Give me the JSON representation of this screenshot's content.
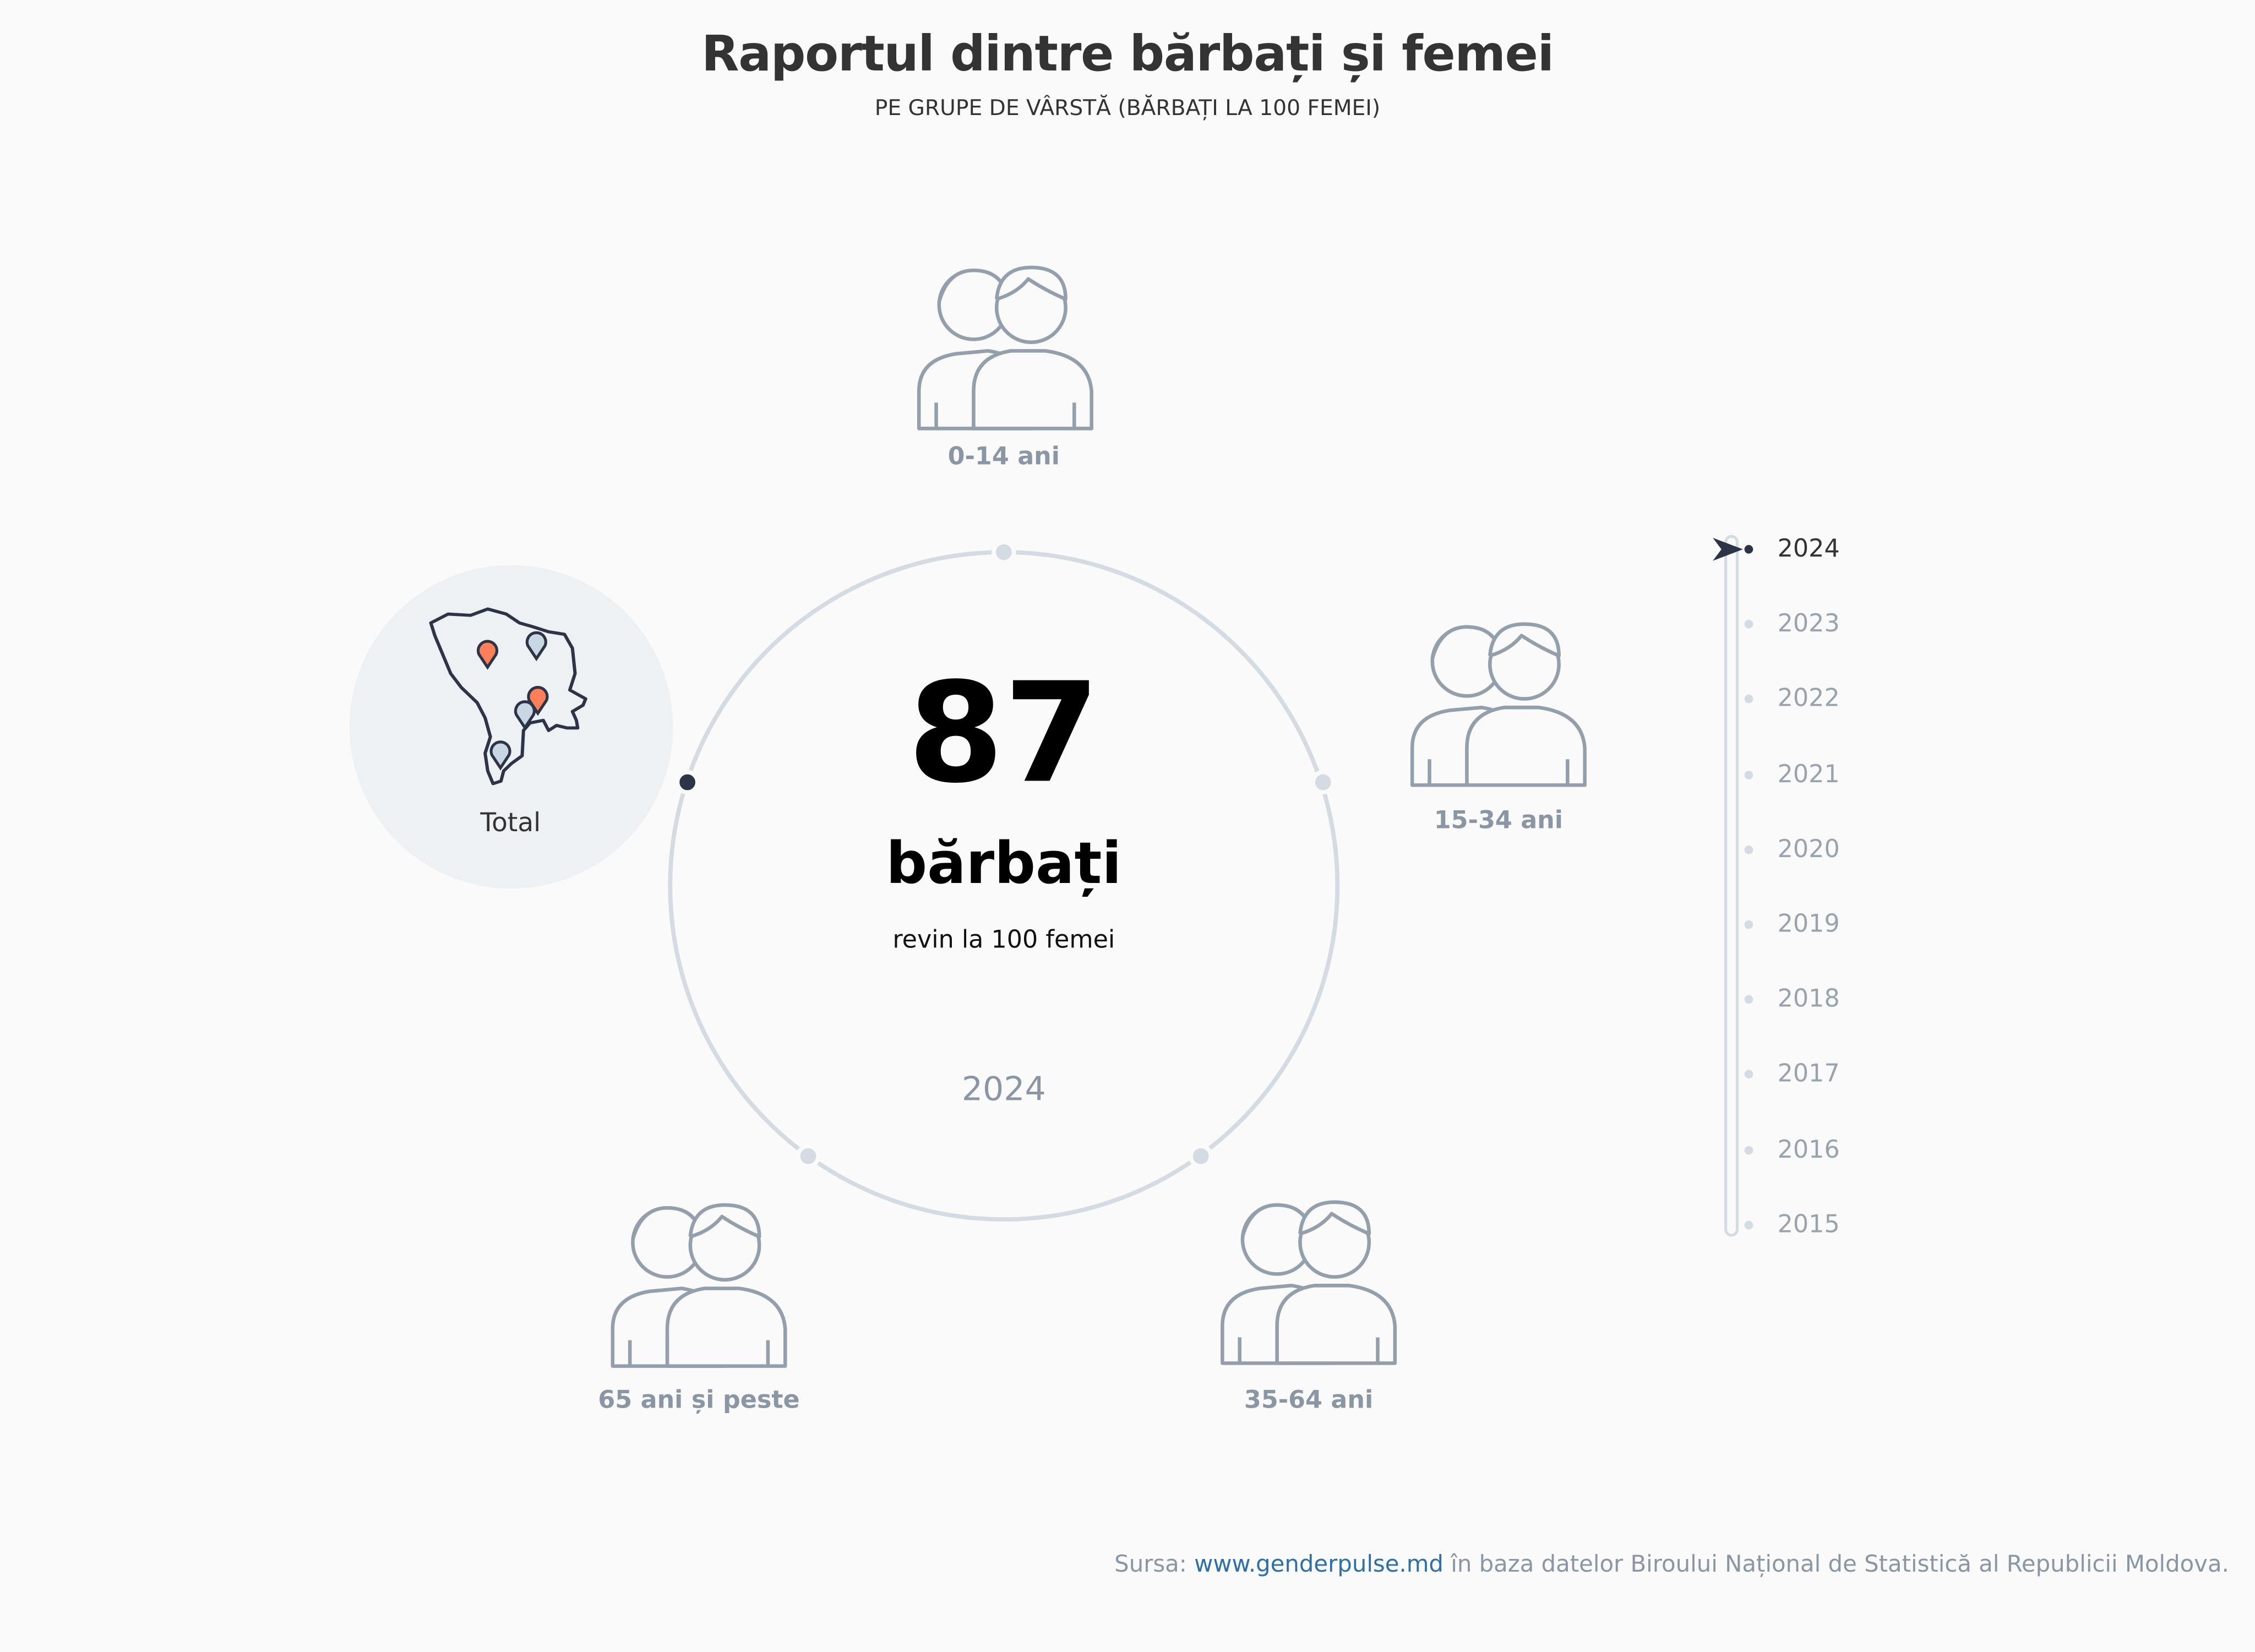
{
  "title": "Raportul dintre bărbați și femei",
  "subtitle": "PE GRUPE DE VÂRSTĂ (BĂRBAȚI LA 100 FEMEI)",
  "groups": [
    {
      "label": "Total",
      "icon": "moldova-map-icon",
      "active": true
    },
    {
      "label": "0-14 ani",
      "icon": "children-icon"
    },
    {
      "label": "15-34 ani",
      "icon": "young-adults-icon"
    },
    {
      "label": "35-64 ani",
      "icon": "adults-icon"
    },
    {
      "label": "65 ani și peste",
      "icon": "elderly-icon"
    }
  ],
  "center": {
    "value": "87",
    "unit": "bărbați",
    "description": "revin la 100 femei",
    "year": "2024"
  },
  "years": [
    "2024",
    "2023",
    "2022",
    "2021",
    "2020",
    "2019",
    "2018",
    "2017",
    "2016",
    "2015"
  ],
  "selected_year": "2024",
  "footer": {
    "prefix": "Sursa: ",
    "link": "www.genderpulse.md",
    "suffix": " în baza datelor Biroului Național de Statistică al Republicii Moldova."
  },
  "colors": {
    "accent": "#2e3447",
    "ring": "#d5dbe3",
    "icon": "#939fab",
    "pin_orange": "#ff7f5a",
    "pin_blue": "#c9d7e5",
    "link": "#2f6fa8"
  }
}
